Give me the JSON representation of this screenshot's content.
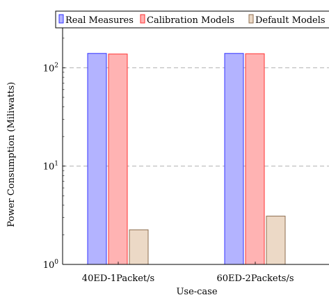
{
  "chart_data": {
    "type": "bar",
    "title": "",
    "xlabel": "Use-case",
    "ylabel": "Power Consumption (Miliwatts)",
    "yscale": "log",
    "ylim": [
      1,
      300
    ],
    "grid": "horizontal dashed",
    "legend_position": "top",
    "categories": [
      "40ED-1Packet/s",
      "60ED-2Packets/s"
    ],
    "series": [
      {
        "name": "Real Measures",
        "values": [
          140,
          140
        ],
        "fill": "#b3b3ff",
        "stroke": "#3333ff"
      },
      {
        "name": "Calibration Models",
        "values": [
          138,
          139
        ],
        "fill": "#ffb3b3",
        "stroke": "#ff3333"
      },
      {
        "name": "Default Models",
        "values": [
          2.25,
          3.1
        ],
        "fill": "#ecd9c6",
        "stroke": "#8c6d4f"
      }
    ],
    "y_ticks": [
      {
        "value": 1,
        "base": "10",
        "exp": "0"
      },
      {
        "value": 10,
        "base": "10",
        "exp": "1"
      },
      {
        "value": 100,
        "base": "10",
        "exp": "2"
      }
    ]
  }
}
